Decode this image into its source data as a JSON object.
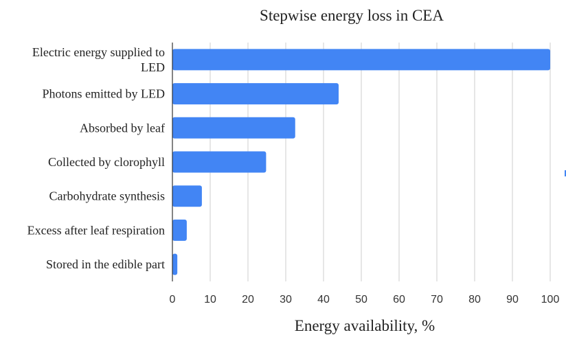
{
  "chart_data": {
    "type": "bar",
    "orientation": "horizontal",
    "title": "Stepwise energy loss in CEA",
    "xlabel": "Energy availability, %",
    "ylabel": "",
    "categories": [
      [
        "Electric energy supplied to",
        "LED"
      ],
      [
        "Photons emitted by LED"
      ],
      [
        "Absorbed by leaf"
      ],
      [
        "Collected by clorophyll"
      ],
      [
        "Carbohydrate synthesis"
      ],
      [
        "Excess after leaf respiration"
      ],
      [
        "Stored in the edible part"
      ]
    ],
    "values": [
      100,
      44,
      32.5,
      24.8,
      7.8,
      3.8,
      1.3
    ],
    "xlim": [
      0,
      100
    ],
    "xticks": [
      "0",
      "10",
      "20",
      "30",
      "40",
      "50",
      "60",
      "70",
      "80",
      "90",
      "100"
    ],
    "grid": true,
    "bar_color": "#4285f4"
  }
}
